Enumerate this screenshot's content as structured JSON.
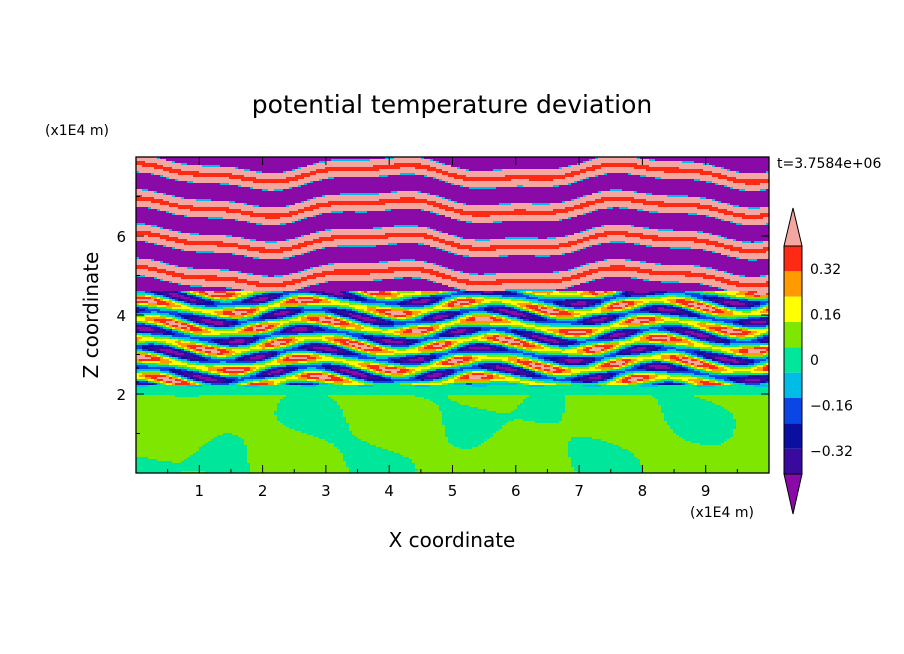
{
  "chart_data": {
    "type": "heatmap",
    "title": "potential temperature deviation",
    "xlabel": "X coordinate",
    "ylabel": "Z coordinate",
    "x_unit": "(x1E4 m)",
    "y_unit": "(x1E4 m)",
    "time_label": "t=3.7584e+06",
    "x_ticks": [
      "1",
      "2",
      "3",
      "4",
      "5",
      "6",
      "7",
      "8",
      "9"
    ],
    "y_ticks": [
      "2",
      "4",
      "6"
    ],
    "xlim": [
      0,
      10
    ],
    "ylim": [
      0,
      8
    ],
    "colorbar": {
      "labels": [
        "0.32",
        "0.16",
        "0",
        "−0.16",
        "−0.32"
      ],
      "levels": [
        -0.4,
        -0.32,
        -0.24,
        -0.16,
        -0.08,
        0,
        0.08,
        0.16,
        0.24,
        0.32,
        0.4
      ],
      "colors": [
        "#8a0aa8",
        "#3a0a9e",
        "#0a0fa0",
        "#0a46e6",
        "#00bce6",
        "#00e69a",
        "#7ee600",
        "#ffff00",
        "#ff9a00",
        "#ff2a14",
        "#f4a6a0"
      ],
      "extend": "both"
    },
    "regions": [
      {
        "z_range": [
          0,
          2
        ],
        "pattern": "mostly green (0 to 0.08) with teal patches (-0.08 to 0)"
      },
      {
        "z_range": [
          2,
          2.2
        ],
        "pattern": "teal band"
      },
      {
        "z_range": [
          2.2,
          4.5
        ],
        "pattern": "mixed turbulent layers spanning full color range"
      },
      {
        "z_range": [
          4.5,
          8
        ],
        "pattern": "alternating pink (>0.4) and purple (<-0.4) horizontal stripes"
      }
    ]
  }
}
